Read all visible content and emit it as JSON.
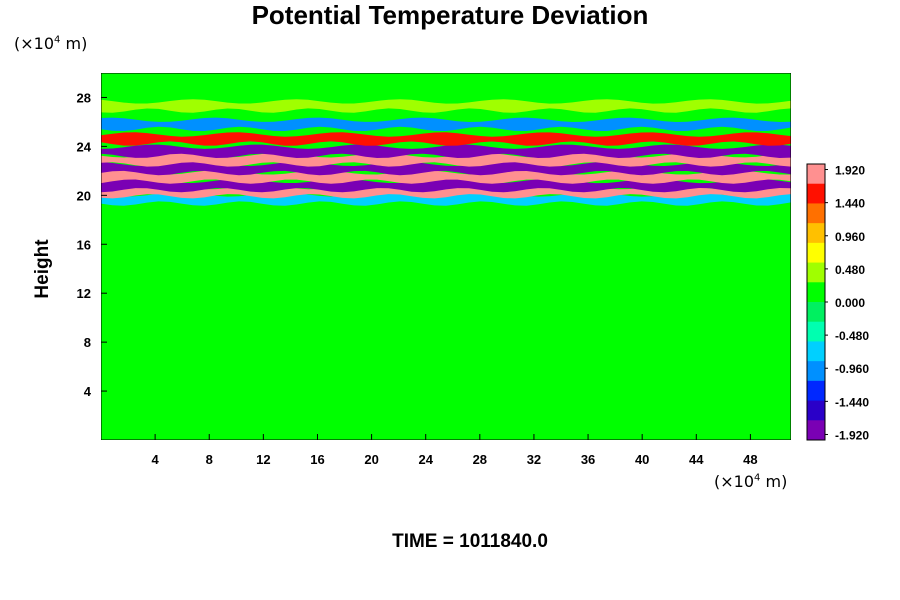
{
  "chart_data": {
    "type": "heatmap",
    "title": "Potential Temperature Deviation",
    "ylabel": "Height",
    "xunit_prefix": "(×10",
    "xunit_exp": "4",
    "xunit_suffix": " m)",
    "yunit_prefix": "(×10",
    "yunit_exp": "4",
    "yunit_suffix": " m)",
    "footer": "TIME = 1011840.0",
    "x_ticks": [
      "4",
      "8",
      "12",
      "16",
      "20",
      "24",
      "28",
      "32",
      "36",
      "40",
      "44",
      "48"
    ],
    "x_tick_values": [
      4,
      8,
      12,
      16,
      20,
      24,
      28,
      32,
      36,
      40,
      44,
      48
    ],
    "y_ticks": [
      "4",
      "8",
      "12",
      "16",
      "20",
      "24",
      "28"
    ],
    "y_tick_values": [
      4,
      8,
      12,
      16,
      20,
      24,
      28
    ],
    "xlim": [
      0,
      51
    ],
    "ylim": [
      0,
      30
    ],
    "colorbar_labels": [
      "1.920",
      "1.440",
      "0.960",
      "0.480",
      "0.000",
      "-0.480",
      "-0.960",
      "-1.440",
      "-1.920"
    ],
    "colorbar_label_values": [
      1.92,
      1.44,
      0.96,
      0.48,
      0.0,
      -0.48,
      -0.96,
      -1.44,
      -1.92
    ],
    "value_range": [
      -2.0,
      2.0
    ],
    "colormap": [
      "#7a00b4",
      "#2a00c8",
      "#0028ff",
      "#0090ff",
      "#00d0ff",
      "#00ffb0",
      "#00f060",
      "#00ff00",
      "#a0ff00",
      "#ffff00",
      "#ffc000",
      "#ff7000",
      "#ff1000",
      "#ff9090"
    ],
    "bands": [
      {
        "y": 19.7,
        "value": -0.8
      },
      {
        "y": 20.3,
        "value": 2.0
      },
      {
        "y": 20.8,
        "value": -2.0
      },
      {
        "y": 21.5,
        "value": 2.0
      },
      {
        "y": 22.2,
        "value": -2.0
      },
      {
        "y": 22.9,
        "value": 2.0
      },
      {
        "y": 23.6,
        "value": -1.9
      },
      {
        "y": 24.6,
        "value": 1.5
      },
      {
        "y": 25.8,
        "value": -0.9
      },
      {
        "y": 27.3,
        "value": 0.4
      }
    ],
    "background_value": 0.0,
    "grid": false,
    "legend": "colorbar-right"
  }
}
